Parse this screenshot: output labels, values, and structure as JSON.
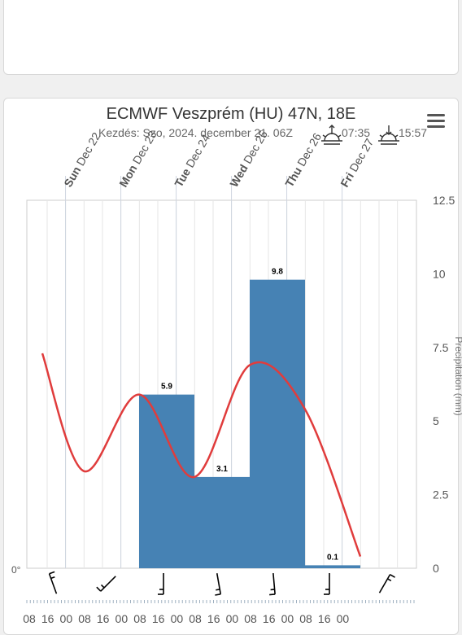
{
  "chart_data": {
    "type": "bar",
    "title": "ECMWF Veszprém (HU) 47N, 18E",
    "subtitle": "Kezdés: Szo, 2024. december 21. 06Z",
    "sunrise": "07:35",
    "sunset": "15:57",
    "day_labels": [
      {
        "bold": "Sun",
        "rest": "Dec 22"
      },
      {
        "bold": "Mon",
        "rest": "Dec 23"
      },
      {
        "bold": "Tue",
        "rest": "Dec 24"
      },
      {
        "bold": "Wed",
        "rest": "Dec 25"
      },
      {
        "bold": "Thu",
        "rest": "Dec 26"
      },
      {
        "bold": "Fri",
        "rest": "Dec 27"
      }
    ],
    "hour_ticks": [
      "08",
      "16",
      "00",
      "08",
      "16",
      "00",
      "08",
      "16",
      "00",
      "08",
      "16",
      "00",
      "08",
      "16",
      "00",
      "08",
      "16",
      "00"
    ],
    "bars": [
      {
        "start_day": 2,
        "end_day": 3,
        "value": 5.9,
        "label": "5.9"
      },
      {
        "start_day": 3,
        "end_day": 4,
        "value": 3.1,
        "label": "3.1"
      },
      {
        "start_day": 4,
        "end_day": 5,
        "value": 9.8,
        "label": "9.8"
      },
      {
        "start_day": 5,
        "end_day": 6,
        "value": 0.1,
        "label": "0.1"
      }
    ],
    "line": {
      "color": "#e03c3c",
      "points": [
        [
          0.25,
          7.3
        ],
        [
          1,
          3.3
        ],
        [
          2,
          5.9
        ],
        [
          3,
          3.1
        ],
        [
          4,
          6.9
        ],
        [
          5,
          5.4
        ],
        [
          6,
          0.4
        ]
      ]
    },
    "y_right": {
      "min": 0,
      "max": 12.5,
      "ticks": [
        "0",
        "2.5",
        "5",
        "7.5",
        "10",
        "12.5"
      ],
      "label": "Precipitation (mm)"
    },
    "y_left_label": "0°",
    "bar_color": "#4682b4",
    "wind_dirs": [
      340,
      225,
      180,
      170,
      175,
      180,
      30
    ]
  }
}
